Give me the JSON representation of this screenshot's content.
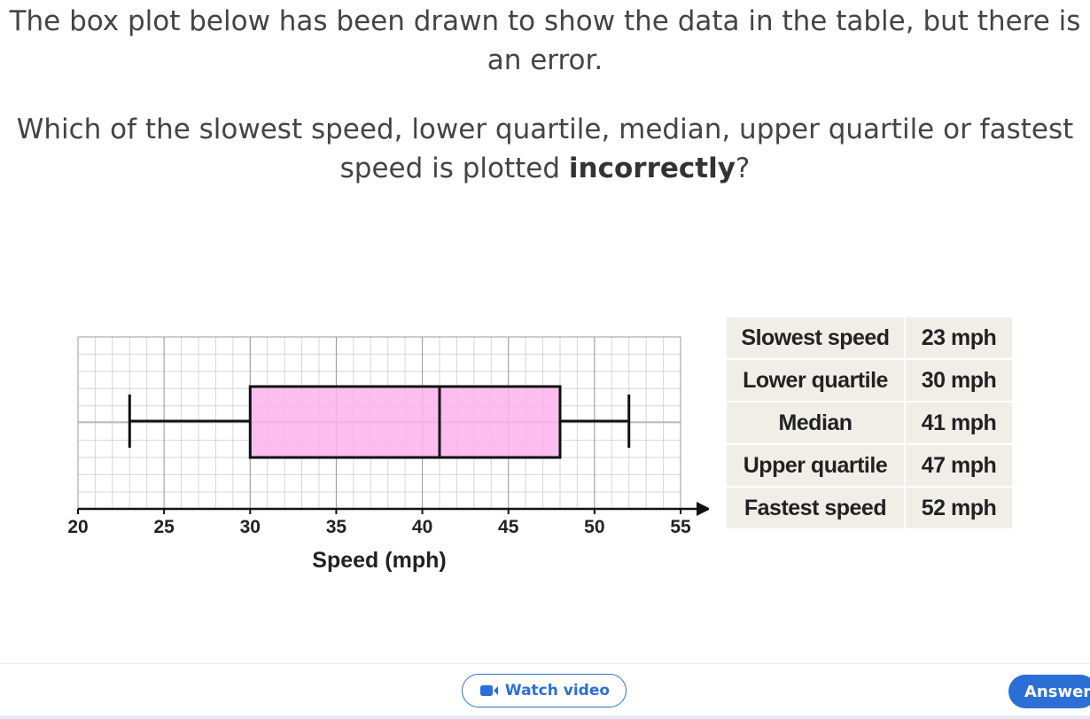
{
  "question": {
    "line1": "The box plot below has been drawn to show the data in the table, but there is an error.",
    "line2_prefix": "Which of the slowest speed, lower quartile, median, upper quartile or fastest speed is plotted ",
    "line2_bold": "incorrectly",
    "line2_suffix": "?"
  },
  "chart_data": {
    "type": "boxplot",
    "xlabel": "Speed (mph)",
    "xlim": [
      20,
      55
    ],
    "ticks": [
      20,
      25,
      30,
      35,
      40,
      45,
      50,
      55
    ],
    "box": {
      "min": 23,
      "q1": 30,
      "median": 41,
      "q3": 48,
      "max": 52
    },
    "box_fill": "#fcb3ec",
    "grid": true
  },
  "table": [
    {
      "label": "Slowest speed",
      "value": "23 mph"
    },
    {
      "label": "Lower quartile",
      "value": "30 mph"
    },
    {
      "label": "Median",
      "value": "41 mph"
    },
    {
      "label": "Upper quartile",
      "value": "47 mph"
    },
    {
      "label": "Fastest speed",
      "value": "52 mph"
    }
  ],
  "footer": {
    "watch_label": "Watch video",
    "watch_icon": "video-camera-icon",
    "answer_label": "Answer",
    "accent": "#2b6fd6"
  }
}
